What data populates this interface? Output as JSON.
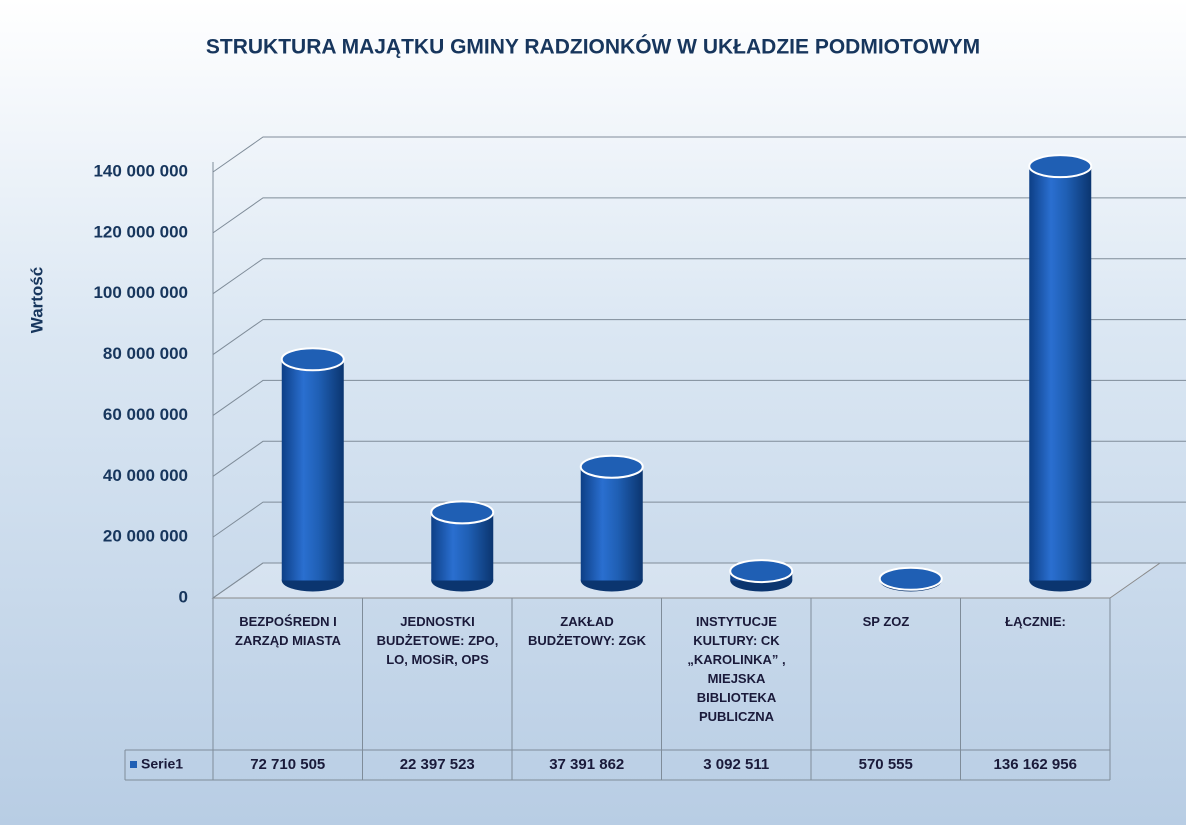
{
  "chart_data": {
    "type": "bar3d",
    "title": "STRUKTURA MAJĄTKU GMINY RADZIONKÓW W UKŁADZIE PODMIOTOWYM",
    "ylabel": "Wartość",
    "categories": [
      "BEZPOŚREDN I ZARZĄD MIASTA",
      "JEDNOSTKI BUDŻETOWE: ZPO, LO, MOSiR, OPS",
      "ZAKŁAD BUDŻETOWY: ZGK",
      "INSTYTUCJE KULTURY: CK „KAROLINKA” , MIEJSKA BIBLIOTEKA PUBLICZNA",
      "SP ZOZ",
      "ŁĄCZNIE:"
    ],
    "series": [
      {
        "name": "Serie1",
        "color": "#1f5fb4",
        "values": [
          72710505,
          22397523,
          37391862,
          3092511,
          570555,
          136162956
        ],
        "value_labels": [
          "72 710 505",
          "22 397 523",
          "37 391 862",
          "3 092 511",
          "570 555",
          "136 162 956"
        ]
      }
    ],
    "ylim": [
      0,
      140000000
    ],
    "yticks": [
      0,
      {
        "value": 20000000,
        "label": "20 000 000"
      },
      {
        "value": 40000000,
        "label": "40 000 000"
      },
      {
        "value": 60000000,
        "label": "60 000 000"
      },
      {
        "value": 80000000,
        "label": "80 000 000"
      },
      {
        "value": 100000000,
        "label": "100 000 000"
      },
      {
        "value": 120000000,
        "label": "120 000 000"
      },
      {
        "value": 140000000,
        "label": "140 000 000"
      }
    ],
    "grid": true,
    "data_table": true
  }
}
